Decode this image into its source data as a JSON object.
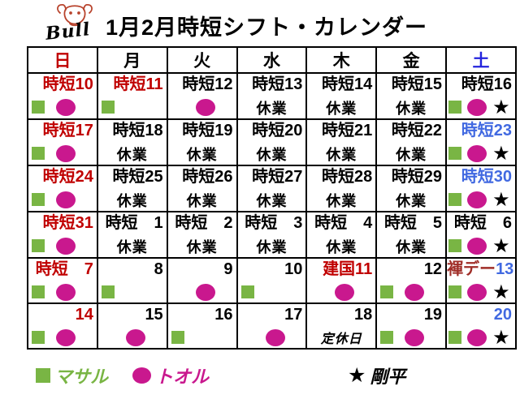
{
  "header": {
    "logo_text": "Bull",
    "title": "1月2月時短シフト・カレンダー"
  },
  "colors": {
    "red": "#c00000",
    "blue": "#4169e1",
    "header_blue": "#2222dd",
    "dark_red": "#a02e28",
    "green": "#79b544",
    "magenta": "#c9188e",
    "black": "#000000",
    "logo_red": "#b8432c"
  },
  "icons": {
    "star_glyph": "★"
  },
  "weekdays": [
    {
      "label": "日",
      "color": "red"
    },
    {
      "label": "月",
      "color": "black"
    },
    {
      "label": "火",
      "color": "black"
    },
    {
      "label": "水",
      "color": "black"
    },
    {
      "label": "木",
      "color": "black"
    },
    {
      "label": "金",
      "color": "black"
    },
    {
      "label": "土",
      "color": "header_blue"
    }
  ],
  "weeks": [
    [
      {
        "label": "時短10",
        "label_color": "red",
        "marks": [
          "sq",
          "ci"
        ]
      },
      {
        "label": "時短11",
        "label_color": "red",
        "marks": [
          "sq"
        ]
      },
      {
        "label": "時短12",
        "label_color": "black",
        "marks": [
          "ci"
        ]
      },
      {
        "label": "時短13",
        "label_color": "black",
        "sub": "休業"
      },
      {
        "label": "時短14",
        "label_color": "black",
        "sub": "休業"
      },
      {
        "label": "時短15",
        "label_color": "black",
        "sub": "休業"
      },
      {
        "label": "時短16",
        "label_color": "black",
        "marks": [
          "sq",
          "ci",
          "st"
        ]
      }
    ],
    [
      {
        "label": "時短17",
        "label_color": "red",
        "marks": [
          "sq",
          "ci"
        ]
      },
      {
        "label": "時短18",
        "label_color": "black",
        "sub": "休業"
      },
      {
        "label": "時短19",
        "label_color": "black",
        "sub": "休業"
      },
      {
        "label": "時短20",
        "label_color": "black",
        "sub": "休業"
      },
      {
        "label": "時短21",
        "label_color": "black",
        "sub": "休業"
      },
      {
        "label": "時短22",
        "label_color": "black",
        "sub": "休業"
      },
      {
        "label": "時短23",
        "label_color": "blue",
        "marks": [
          "sq",
          "ci",
          "st"
        ]
      }
    ],
    [
      {
        "label": "時短24",
        "label_color": "red",
        "marks": [
          "sq",
          "ci"
        ]
      },
      {
        "label": "時短25",
        "label_color": "black",
        "sub": "休業"
      },
      {
        "label": "時短26",
        "label_color": "black",
        "sub": "休業"
      },
      {
        "label": "時短27",
        "label_color": "black",
        "sub": "休業"
      },
      {
        "label": "時短28",
        "label_color": "black",
        "sub": "休業"
      },
      {
        "label": "時短29",
        "label_color": "black",
        "sub": "休業"
      },
      {
        "label": "時短30",
        "label_color": "blue",
        "marks": [
          "sq",
          "ci",
          "st"
        ]
      }
    ],
    [
      {
        "label": "時短31",
        "label_color": "red",
        "marks": [
          "sq",
          "ci"
        ]
      },
      {
        "label": "時短　1",
        "label_color": "black",
        "sub": "休業"
      },
      {
        "label": "時短　2",
        "label_color": "black",
        "sub": "休業"
      },
      {
        "label": "時短　3",
        "label_color": "black",
        "sub": "休業"
      },
      {
        "label": "時短　4",
        "label_color": "black",
        "sub": "休業"
      },
      {
        "label": "時短　5",
        "label_color": "black",
        "sub": "休業"
      },
      {
        "label": "時短　6",
        "label_color": "black",
        "marks": [
          "sq",
          "ci",
          "st"
        ]
      }
    ],
    [
      {
        "label": "時短　7",
        "label_color": "red",
        "marks": [
          "sq",
          "ci"
        ]
      },
      {
        "label": "8",
        "label_color": "black",
        "marks": [
          "sq"
        ]
      },
      {
        "label": "9",
        "label_color": "black",
        "marks": [
          "ci"
        ]
      },
      {
        "label": "10",
        "label_color": "black",
        "marks": [
          "sq"
        ]
      },
      {
        "label": "建国11",
        "label_color": "red",
        "marks": [
          "ci"
        ]
      },
      {
        "label": "12",
        "label_color": "black",
        "marks": [
          "sq",
          "ci"
        ]
      },
      {
        "label": "褌デー",
        "label_color": "dark_red",
        "label2": "13",
        "label2_color": "blue",
        "marks": [
          "sq",
          "ci",
          "st"
        ]
      }
    ],
    [
      {
        "label": "14",
        "label_color": "red",
        "marks": [
          "sq",
          "ci"
        ]
      },
      {
        "label": "15",
        "label_color": "black",
        "marks": [
          "ci"
        ]
      },
      {
        "label": "16",
        "label_color": "black",
        "marks": [
          "sq"
        ]
      },
      {
        "label": "17",
        "label_color": "black",
        "marks": [
          "ci"
        ]
      },
      {
        "label": "18",
        "label_color": "black",
        "sub": "定休日",
        "sub_style": "italic"
      },
      {
        "label": "19",
        "label_color": "black",
        "marks": [
          "sq",
          "ci"
        ]
      },
      {
        "label": "20",
        "label_color": "blue",
        "marks": [
          "sq",
          "ci",
          "st"
        ]
      }
    ]
  ],
  "legend": [
    {
      "symbol": "sq",
      "label": "マサル",
      "color": "green"
    },
    {
      "symbol": "ci",
      "label": "トオル",
      "color": "magenta"
    },
    {
      "symbol": "st",
      "label": "剛平",
      "color": "black"
    }
  ]
}
